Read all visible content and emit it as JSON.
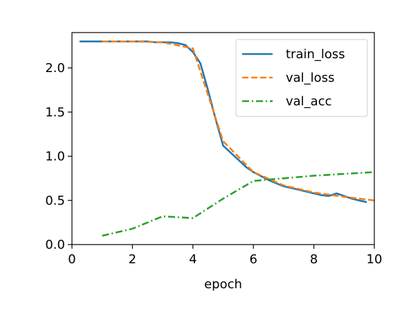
{
  "chart_data": {
    "type": "line",
    "xlabel": "epoch",
    "ylabel": "",
    "xlim": [
      0,
      10
    ],
    "ylim": [
      0,
      2.4
    ],
    "xticks": [
      0,
      2,
      4,
      6,
      8,
      10
    ],
    "xtick_labels": [
      "0",
      "2",
      "4",
      "6",
      "8",
      "10"
    ],
    "yticks": [
      0.0,
      0.5,
      1.0,
      1.5,
      2.0
    ],
    "ytick_labels": [
      "0.0",
      "0.5",
      "1.0",
      "1.5",
      "2.0"
    ],
    "grid": false,
    "legend_position": "top-right",
    "series": [
      {
        "name": "train_loss",
        "color": "#1f77b4",
        "linestyle": "solid",
        "x": [
          0.25,
          0.5,
          0.75,
          1.0,
          1.25,
          1.5,
          1.75,
          2.0,
          2.25,
          2.5,
          2.75,
          3.0,
          3.25,
          3.5,
          3.75,
          4.0,
          4.25,
          4.5,
          4.75,
          5.0,
          5.25,
          5.5,
          5.75,
          6.0,
          6.5,
          7.0,
          7.5,
          8.0,
          8.25,
          8.5,
          8.75,
          9.0,
          9.25,
          9.5,
          9.75
        ],
        "y": [
          2.3,
          2.3,
          2.3,
          2.3,
          2.3,
          2.3,
          2.3,
          2.3,
          2.3,
          2.3,
          2.29,
          2.29,
          2.29,
          2.28,
          2.26,
          2.18,
          2.05,
          1.75,
          1.42,
          1.12,
          1.04,
          0.96,
          0.88,
          0.82,
          0.73,
          0.66,
          0.62,
          0.58,
          0.56,
          0.55,
          0.58,
          0.55,
          0.52,
          0.5,
          0.48
        ]
      },
      {
        "name": "val_loss",
        "color": "#ff7f0e",
        "linestyle": "dashed",
        "x": [
          1,
          2,
          3,
          4,
          5,
          6,
          7,
          8,
          9,
          10
        ],
        "y": [
          2.3,
          2.3,
          2.29,
          2.22,
          1.17,
          0.82,
          0.67,
          0.59,
          0.54,
          0.5
        ]
      },
      {
        "name": "val_acc",
        "color": "#2ca02c",
        "linestyle": "dashdot",
        "x": [
          1,
          2,
          3,
          4,
          5,
          6,
          7,
          8,
          9,
          10
        ],
        "y": [
          0.1,
          0.18,
          0.32,
          0.3,
          0.52,
          0.72,
          0.75,
          0.78,
          0.8,
          0.82
        ]
      }
    ]
  }
}
